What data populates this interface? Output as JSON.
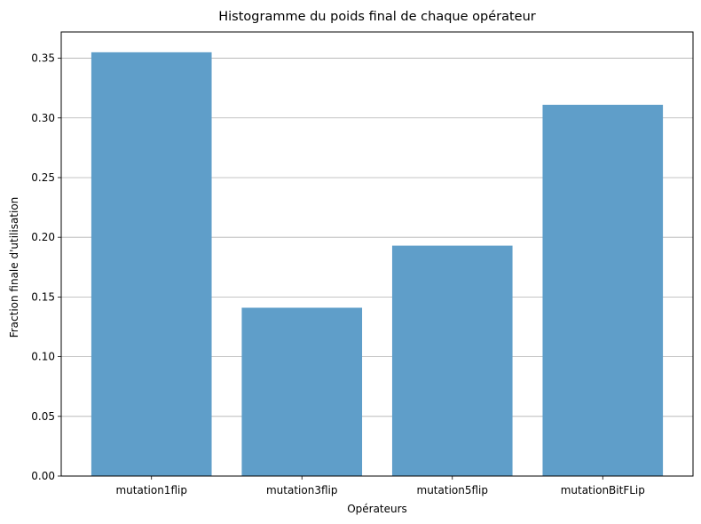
{
  "chart_data": {
    "type": "bar",
    "title": "Histogramme du poids final de chaque opérateur",
    "xlabel": "Opérateurs",
    "ylabel": "Fraction finale d'utilisation",
    "categories": [
      "mutation1flip",
      "mutation3flip",
      "mutation5flip",
      "mutationBitFLip"
    ],
    "values": [
      0.355,
      0.141,
      0.193,
      0.311
    ],
    "ylim": [
      0,
      0.372
    ],
    "yticks": [
      {
        "value": 0.0,
        "label": "0.00"
      },
      {
        "value": 0.05,
        "label": "0.05"
      },
      {
        "value": 0.1,
        "label": "0.10"
      },
      {
        "value": 0.15,
        "label": "0.15"
      },
      {
        "value": 0.2,
        "label": "0.20"
      },
      {
        "value": 0.25,
        "label": "0.25"
      },
      {
        "value": 0.3,
        "label": "0.30"
      },
      {
        "value": 0.35,
        "label": "0.35"
      }
    ],
    "grid": "y-major",
    "bar_color": "#5f9ec9",
    "grid_color": "#b0b0b0"
  }
}
